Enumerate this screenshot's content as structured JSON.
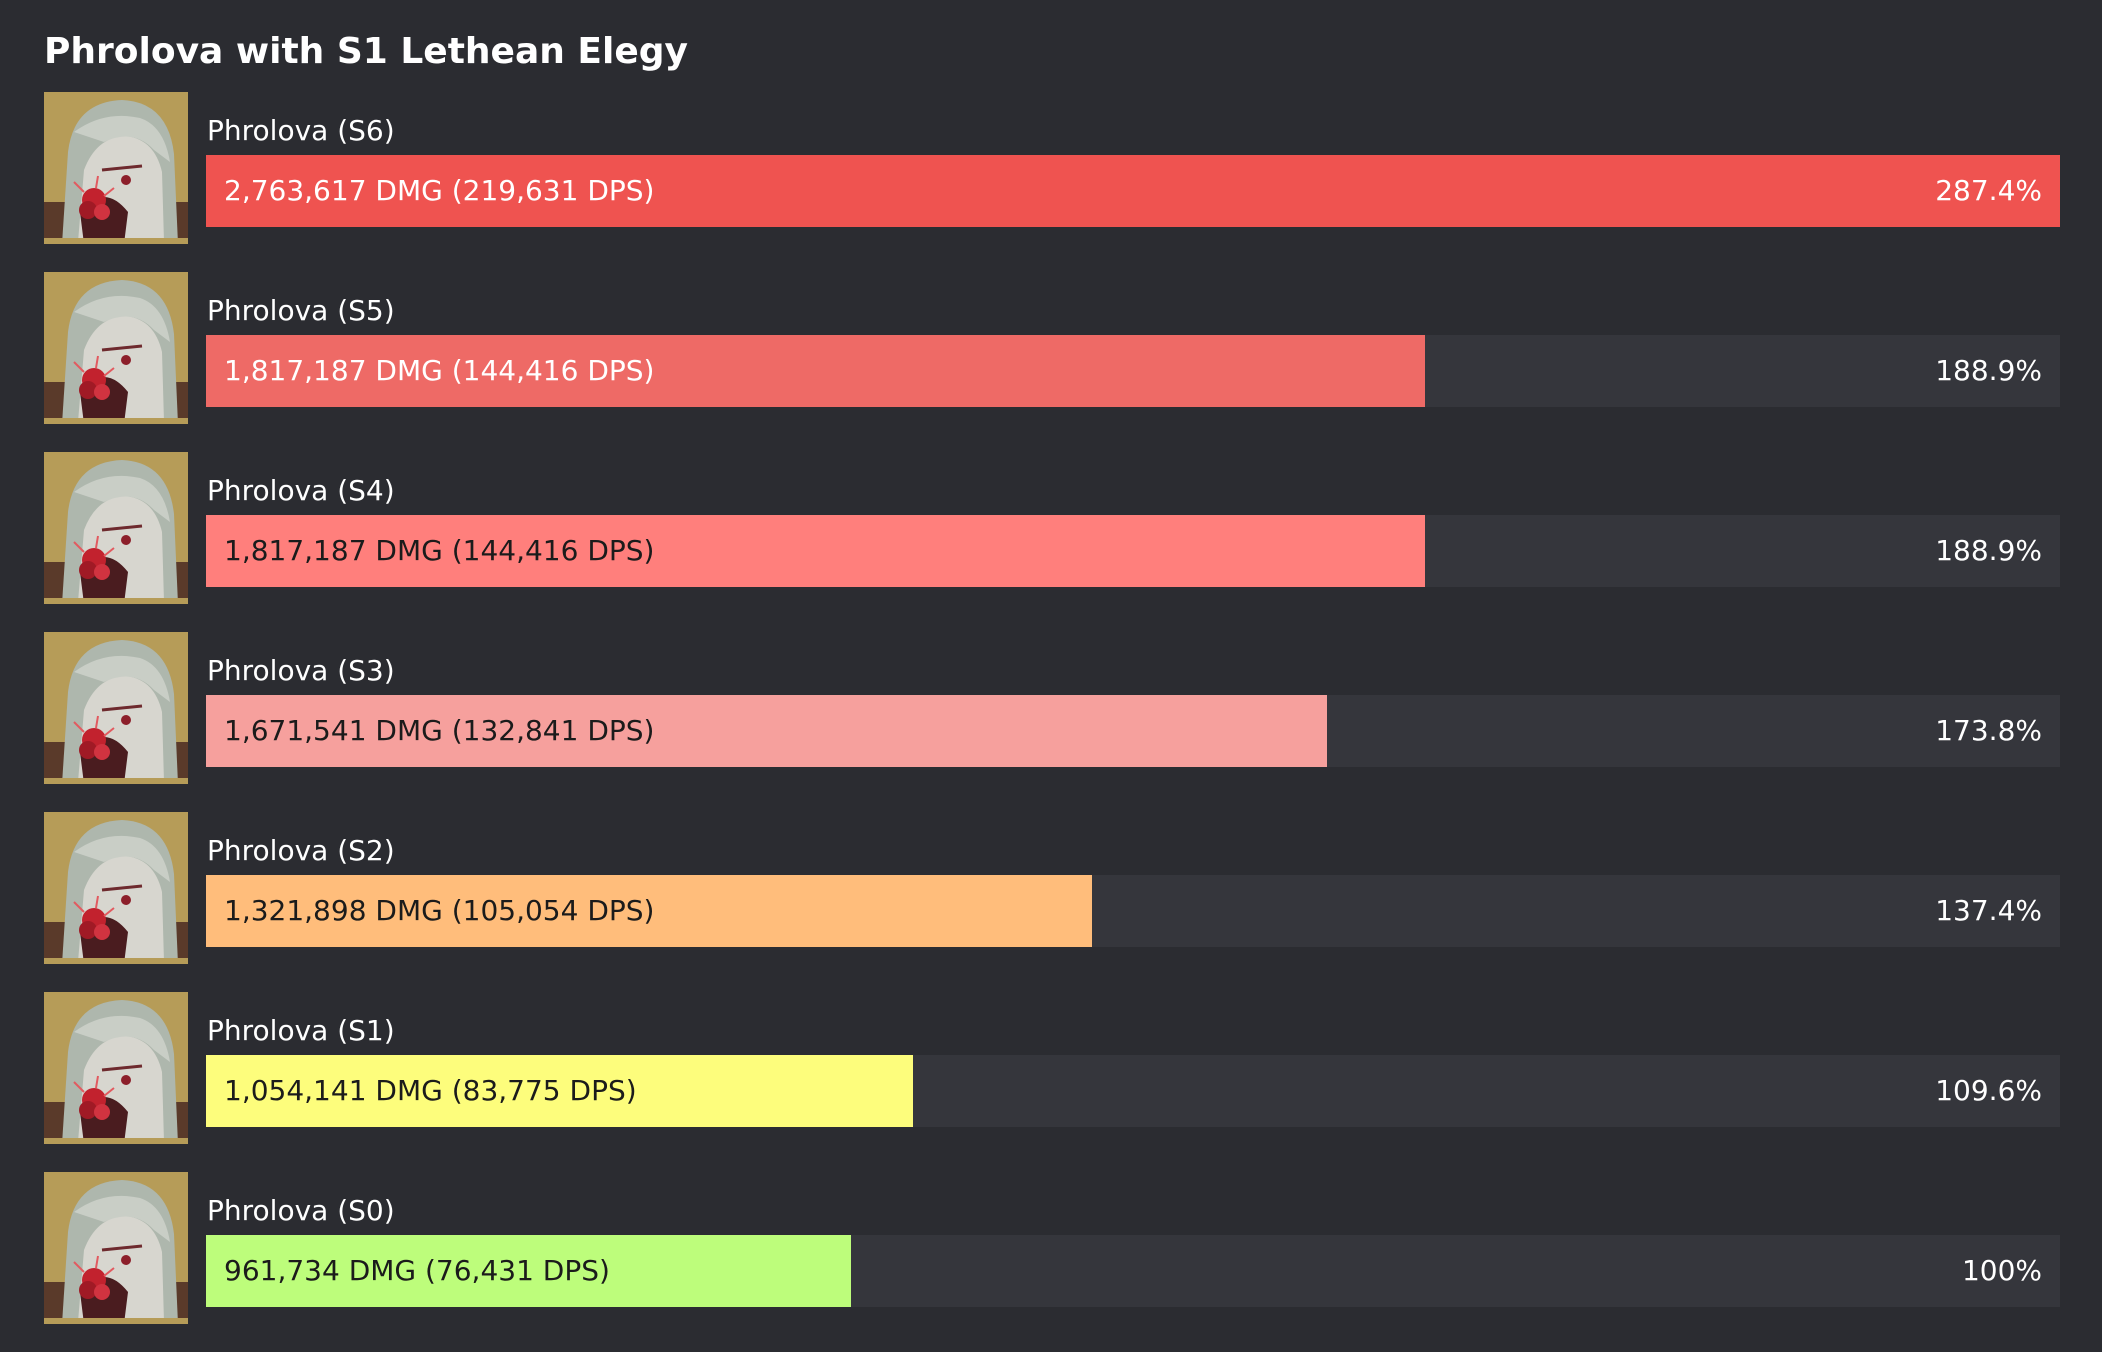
{
  "chart_data": {
    "type": "bar",
    "orientation": "horizontal",
    "title": "Phrolova with S1 Lethean Elegy",
    "categories": [
      "Phrolova (S6)",
      "Phrolova (S5)",
      "Phrolova (S4)",
      "Phrolova (S3)",
      "Phrolova (S2)",
      "Phrolova (S1)",
      "Phrolova (S0)"
    ],
    "series": [
      {
        "values": [
          287.4,
          188.9,
          188.9,
          173.8,
          137.4,
          109.6,
          100
        ]
      }
    ],
    "xlim": [
      0,
      287.4
    ],
    "grid": false,
    "legend": "none",
    "bars": [
      {
        "label": "Phrolova (S6)",
        "value_text": "2,763,617 DMG (219,631 DPS)",
        "pct_text": "287.4%",
        "pct": 287.4,
        "color": "#ef5350",
        "text_color": "#ffffff",
        "icon": "phrolova-portrait-icon"
      },
      {
        "label": "Phrolova (S5)",
        "value_text": "1,817,187 DMG (144,416 DPS)",
        "pct_text": "188.9%",
        "pct": 188.9,
        "color": "#ee6a66",
        "text_color": "#ffffff",
        "icon": "phrolova-portrait-icon"
      },
      {
        "label": "Phrolova (S4)",
        "value_text": "1,817,187 DMG (144,416 DPS)",
        "pct_text": "188.9%",
        "pct": 188.9,
        "color": "#ff7f7c",
        "text_color": "#1b1b1b",
        "icon": "phrolova-portrait-icon"
      },
      {
        "label": "Phrolova (S3)",
        "value_text": "1,671,541 DMG (132,841 DPS)",
        "pct_text": "173.8%",
        "pct": 173.8,
        "color": "#f6a09d",
        "text_color": "#1b1b1b",
        "icon": "phrolova-portrait-icon"
      },
      {
        "label": "Phrolova (S2)",
        "value_text": "1,321,898 DMG (105,054 DPS)",
        "pct_text": "137.4%",
        "pct": 137.4,
        "color": "#ffbd7b",
        "text_color": "#1b1b1b",
        "icon": "phrolova-portrait-icon"
      },
      {
        "label": "Phrolova (S1)",
        "value_text": "1,054,141 DMG (83,775 DPS)",
        "pct_text": "109.6%",
        "pct": 109.6,
        "color": "#fdfd7c",
        "text_color": "#1b1b1b",
        "icon": "phrolova-portrait-icon"
      },
      {
        "label": "Phrolova (S0)",
        "value_text": "961,734 DMG (76,431 DPS)",
        "pct_text": "100%",
        "pct": 100,
        "color": "#bdfd7b",
        "text_color": "#1b1b1b",
        "icon": "phrolova-portrait-icon"
      }
    ]
  }
}
